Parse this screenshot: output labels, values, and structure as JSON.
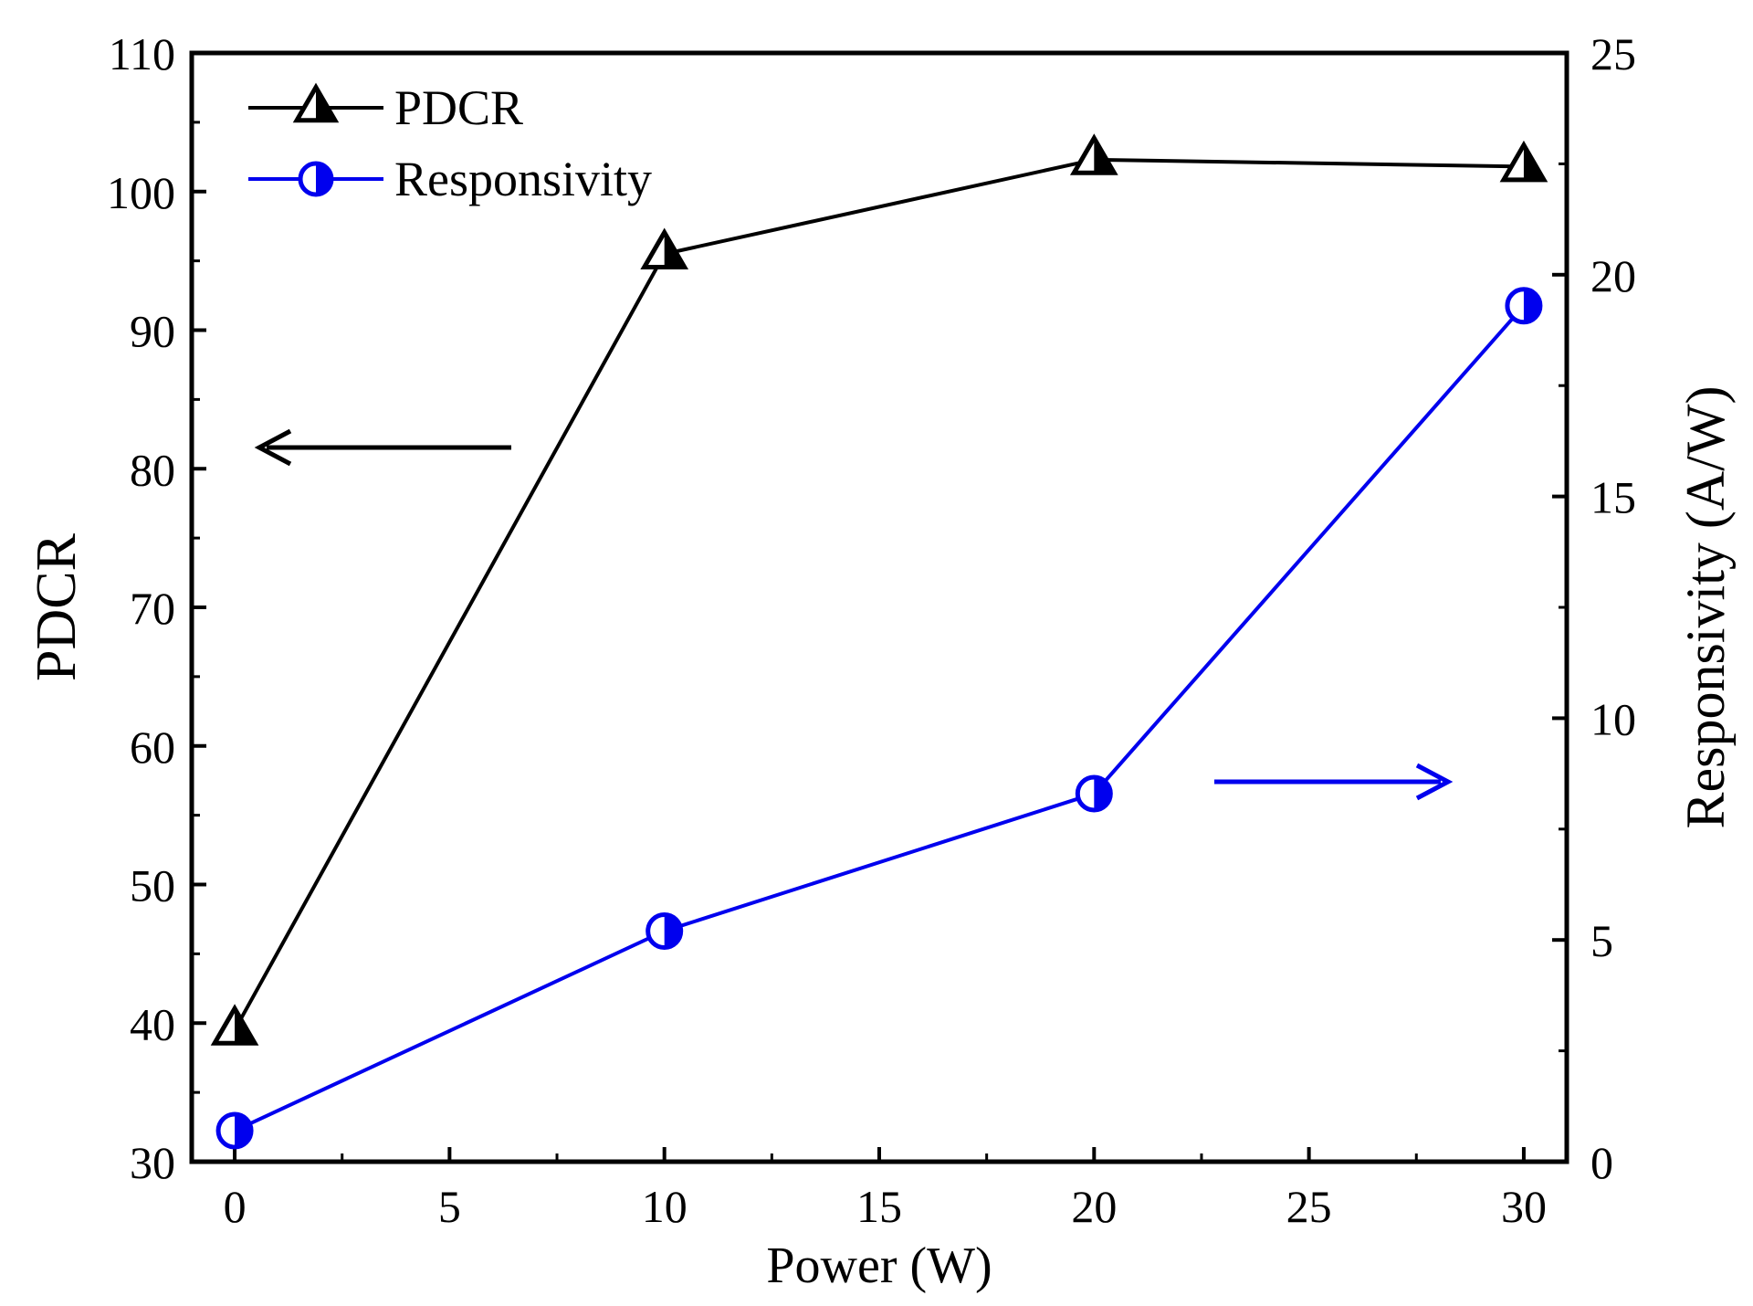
{
  "chart_data": {
    "type": "line",
    "title": "",
    "xlabel": "Power (W)",
    "ylabel": "PDCR",
    "y2label": "Responsivity (A/W)",
    "x": [
      0,
      10,
      20,
      30
    ],
    "xlim": [
      -1,
      31
    ],
    "ylim": [
      30,
      110
    ],
    "y2lim": [
      0,
      25
    ],
    "xticks": [
      0,
      5,
      10,
      15,
      20,
      25,
      30
    ],
    "yticks": [
      30,
      40,
      50,
      60,
      70,
      80,
      90,
      100,
      110
    ],
    "y2ticks": [
      0,
      5,
      10,
      15,
      20,
      25
    ],
    "grid": false,
    "legend_position": "top-left",
    "series": [
      {
        "name": "PDCR",
        "axis": "left",
        "marker": "half-filled-triangle",
        "color": "#000000",
        "values": [
          39.5,
          95.5,
          102.3,
          101.8
        ]
      },
      {
        "name": "Responsivity",
        "axis": "right",
        "marker": "half-filled-circle",
        "color": "#0000ee",
        "values": [
          0.7,
          5.2,
          8.3,
          19.3
        ]
      }
    ],
    "annotations": [
      {
        "type": "arrow",
        "direction": "left",
        "meaning": "PDCR uses left axis",
        "color": "#000000"
      },
      {
        "type": "arrow",
        "direction": "right",
        "meaning": "Responsivity uses right axis",
        "color": "#0000ee"
      }
    ]
  }
}
